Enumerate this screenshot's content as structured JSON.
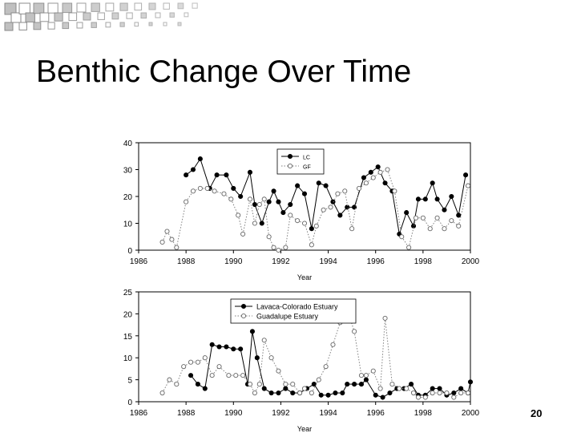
{
  "slide": {
    "title": "Benthic Change Over Time",
    "page_number": "20"
  },
  "chart_data": [
    {
      "type": "line",
      "xlabel": "Year",
      "ylabel": "",
      "xlim": [
        1986,
        2000
      ],
      "ylim": [
        0,
        40
      ],
      "xticks": [
        1986,
        1988,
        1990,
        1992,
        1994,
        1996,
        1998,
        2000
      ],
      "yticks": [
        0,
        10,
        20,
        30,
        40
      ],
      "legend_position": "top-center",
      "series": [
        {
          "name": "LC",
          "marker": "filled",
          "points": [
            [
              1988.0,
              28
            ],
            [
              1988.3,
              30
            ],
            [
              1988.6,
              34
            ],
            [
              1989.0,
              23
            ],
            [
              1989.3,
              28
            ],
            [
              1989.7,
              28
            ],
            [
              1990.0,
              23
            ],
            [
              1990.3,
              20
            ],
            [
              1990.7,
              29
            ],
            [
              1990.9,
              17
            ],
            [
              1991.2,
              10
            ],
            [
              1991.5,
              18
            ],
            [
              1991.7,
              22
            ],
            [
              1991.9,
              18
            ],
            [
              1992.1,
              14
            ],
            [
              1992.4,
              17
            ],
            [
              1992.7,
              24
            ],
            [
              1993.0,
              21
            ],
            [
              1993.3,
              8
            ],
            [
              1993.6,
              25
            ],
            [
              1993.9,
              24
            ],
            [
              1994.2,
              18
            ],
            [
              1994.5,
              13
            ],
            [
              1994.8,
              16
            ],
            [
              1995.1,
              16
            ],
            [
              1995.5,
              27
            ],
            [
              1995.8,
              29
            ],
            [
              1996.1,
              31
            ],
            [
              1996.4,
              25
            ],
            [
              1996.7,
              22
            ],
            [
              1997.0,
              6
            ],
            [
              1997.3,
              14
            ],
            [
              1997.6,
              9
            ],
            [
              1997.8,
              19
            ],
            [
              1998.1,
              19
            ],
            [
              1998.4,
              25
            ],
            [
              1998.6,
              19
            ],
            [
              1998.9,
              15
            ],
            [
              1999.2,
              20
            ],
            [
              1999.5,
              13
            ],
            [
              1999.8,
              28
            ]
          ]
        },
        {
          "name": "GF",
          "marker": "open",
          "points": [
            [
              1987.0,
              3
            ],
            [
              1987.2,
              7
            ],
            [
              1987.4,
              4
            ],
            [
              1987.6,
              1
            ],
            [
              1988.0,
              18
            ],
            [
              1988.3,
              22
            ],
            [
              1988.6,
              23
            ],
            [
              1988.9,
              23
            ],
            [
              1989.2,
              22
            ],
            [
              1989.6,
              21
            ],
            [
              1989.9,
              19
            ],
            [
              1990.2,
              13
            ],
            [
              1990.4,
              6
            ],
            [
              1990.7,
              19
            ],
            [
              1990.9,
              10
            ],
            [
              1991.1,
              17
            ],
            [
              1991.3,
              19
            ],
            [
              1991.5,
              5
            ],
            [
              1991.7,
              1
            ],
            [
              1991.9,
              0
            ],
            [
              1992.2,
              1
            ],
            [
              1992.4,
              13
            ],
            [
              1992.7,
              11
            ],
            [
              1993.0,
              10
            ],
            [
              1993.3,
              2
            ],
            [
              1993.5,
              9
            ],
            [
              1993.8,
              15
            ],
            [
              1994.1,
              16
            ],
            [
              1994.4,
              21
            ],
            [
              1994.7,
              22
            ],
            [
              1995.0,
              8
            ],
            [
              1995.3,
              23
            ],
            [
              1995.6,
              25
            ],
            [
              1995.9,
              27
            ],
            [
              1996.2,
              29
            ],
            [
              1996.5,
              30
            ],
            [
              1996.8,
              22
            ],
            [
              1997.1,
              5
            ],
            [
              1997.4,
              1
            ],
            [
              1997.7,
              12
            ],
            [
              1998.0,
              12
            ],
            [
              1998.3,
              8
            ],
            [
              1998.6,
              12
            ],
            [
              1998.9,
              8
            ],
            [
              1999.2,
              11
            ],
            [
              1999.5,
              9
            ],
            [
              1999.9,
              24
            ]
          ]
        }
      ]
    },
    {
      "type": "line",
      "xlabel": "Year",
      "ylabel": "",
      "xlim": [
        1986,
        2000
      ],
      "ylim": [
        0,
        25
      ],
      "xticks": [
        1986,
        1988,
        1990,
        1992,
        1994,
        1996,
        1998,
        2000
      ],
      "yticks": [
        0,
        5,
        10,
        15,
        20,
        25
      ],
      "legend_position": "top-center",
      "series": [
        {
          "name": "Lavaca-Colorado Estuary",
          "marker": "filled",
          "points": [
            [
              1988.2,
              6
            ],
            [
              1988.5,
              4
            ],
            [
              1988.8,
              3
            ],
            [
              1989.1,
              13
            ],
            [
              1989.4,
              12.5
            ],
            [
              1989.7,
              12.5
            ],
            [
              1990.0,
              12
            ],
            [
              1990.3,
              12
            ],
            [
              1990.6,
              4
            ],
            [
              1990.8,
              16
            ],
            [
              1991.0,
              10
            ],
            [
              1991.3,
              3
            ],
            [
              1991.6,
              2
            ],
            [
              1991.9,
              2
            ],
            [
              1992.2,
              3
            ],
            [
              1992.5,
              2
            ],
            [
              1992.8,
              2
            ],
            [
              1993.1,
              3
            ],
            [
              1993.4,
              4
            ],
            [
              1993.7,
              1.5
            ],
            [
              1994.0,
              1.5
            ],
            [
              1994.3,
              2
            ],
            [
              1994.6,
              2
            ],
            [
              1994.8,
              4
            ],
            [
              1995.1,
              4
            ],
            [
              1995.4,
              4
            ],
            [
              1995.6,
              5
            ],
            [
              1996.0,
              1.5
            ],
            [
              1996.3,
              1
            ],
            [
              1996.6,
              2
            ],
            [
              1996.9,
              3
            ],
            [
              1997.2,
              3
            ],
            [
              1997.5,
              4
            ],
            [
              1997.8,
              1.5
            ],
            [
              1998.1,
              1.5
            ],
            [
              1998.4,
              3
            ],
            [
              1998.7,
              3
            ],
            [
              1999.0,
              1.5
            ],
            [
              1999.3,
              2
            ],
            [
              1999.6,
              3
            ],
            [
              1999.9,
              2
            ],
            [
              2000.0,
              4.5
            ]
          ]
        },
        {
          "name": "Guadalupe Estuary",
          "marker": "open",
          "points": [
            [
              1987.0,
              2
            ],
            [
              1987.3,
              5
            ],
            [
              1987.6,
              4
            ],
            [
              1987.9,
              8
            ],
            [
              1988.2,
              9
            ],
            [
              1988.5,
              9
            ],
            [
              1988.8,
              10
            ],
            [
              1989.1,
              6
            ],
            [
              1989.4,
              8
            ],
            [
              1989.8,
              6
            ],
            [
              1990.1,
              6
            ],
            [
              1990.4,
              6
            ],
            [
              1990.7,
              4
            ],
            [
              1990.9,
              2
            ],
            [
              1991.1,
              4
            ],
            [
              1991.3,
              14
            ],
            [
              1991.6,
              10
            ],
            [
              1991.9,
              7
            ],
            [
              1992.2,
              4
            ],
            [
              1992.5,
              4
            ],
            [
              1992.8,
              2
            ],
            [
              1993.0,
              3
            ],
            [
              1993.3,
              2
            ],
            [
              1993.6,
              5
            ],
            [
              1993.9,
              8
            ],
            [
              1994.2,
              13
            ],
            [
              1994.5,
              18
            ],
            [
              1994.8,
              21
            ],
            [
              1995.1,
              16
            ],
            [
              1995.4,
              6
            ],
            [
              1995.6,
              6
            ],
            [
              1995.9,
              7
            ],
            [
              1996.2,
              3
            ],
            [
              1996.4,
              19
            ],
            [
              1996.7,
              4
            ],
            [
              1997.0,
              3
            ],
            [
              1997.3,
              3
            ],
            [
              1997.6,
              2
            ],
            [
              1997.8,
              1
            ],
            [
              1998.1,
              1
            ],
            [
              1998.4,
              2
            ],
            [
              1998.7,
              2
            ],
            [
              1999.0,
              2
            ],
            [
              1999.3,
              1
            ],
            [
              1999.6,
              2
            ],
            [
              1999.9,
              2
            ]
          ]
        }
      ]
    }
  ],
  "colors": {
    "deco_square": "#c0c0c0",
    "deco_square_shadow": "#8a8a8a",
    "series_line": "#000000",
    "open_marker_line": "#808080"
  }
}
